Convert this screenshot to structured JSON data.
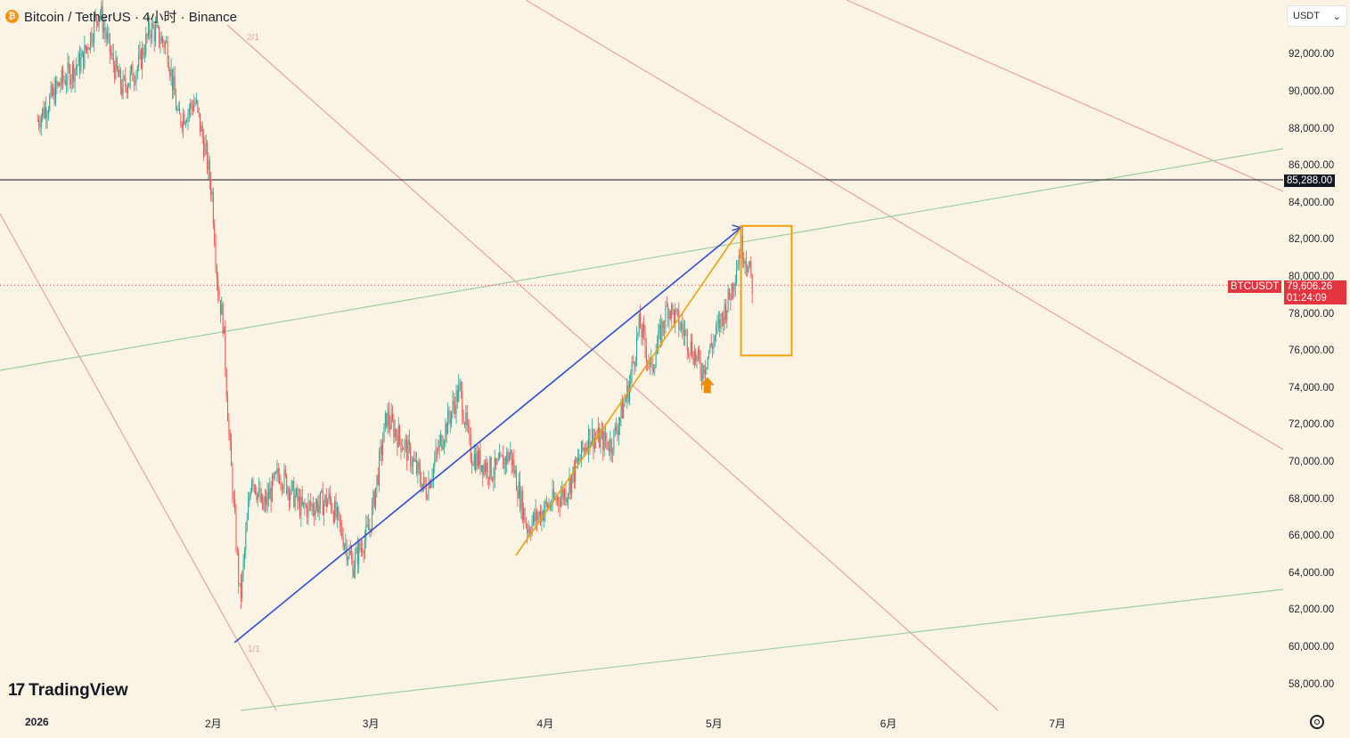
{
  "header": {
    "symbol_title": "Bitcoin / TetherUS · 4小时 · Binance",
    "coin_icon": "bitcoin-icon",
    "currency": "USDT"
  },
  "brand": {
    "name": "TradingView"
  },
  "colors": {
    "background": "#fbf3e4",
    "candle_up": "#26a69a",
    "candle_down": "#ef5350",
    "trend_blue": "#2b4fd6",
    "trend_orange": "#f0a10a",
    "channel_red": "#e38a8a",
    "channel_green": "#9ccf9c",
    "last_price_tag": "#e2353f"
  },
  "price_axis": {
    "ticks": [
      "92,000.00",
      "90,000.00",
      "88,000.00",
      "86,000.00",
      "84,000.00",
      "82,000.00",
      "80,000.00",
      "78,000.00",
      "76,000.00",
      "74,000.00",
      "72,000.00",
      "70,000.00",
      "68,000.00",
      "66,000.00",
      "64,000.00",
      "62,000.00",
      "60,000.00",
      "58,000.00"
    ],
    "horizontal_line_label": "85,288.00",
    "symbol_tag": "BTCUSDT",
    "last_price": "79,606.26",
    "countdown": "01:24:09"
  },
  "time_axis": {
    "ticks": [
      "2026",
      "2月",
      "3月",
      "4月",
      "5月",
      "6月",
      "7月"
    ]
  },
  "annotations": {
    "fib_top": "2/1",
    "fib_bottom": "1/1"
  },
  "chart_data": {
    "type": "candlestick",
    "title": "Bitcoin / TetherUS · 4小时 · Binance",
    "ylim": [
      57000,
      94000
    ],
    "x_range": [
      "2026-01-01",
      "2026-07-31"
    ],
    "horizontal_line": 85288,
    "last_price": 79606.26,
    "close_path": [
      {
        "date": "2026-01-01",
        "close": 88500
      },
      {
        "date": "2026-01-05",
        "close": 90500
      },
      {
        "date": "2026-01-09",
        "close": 91800
      },
      {
        "date": "2026-01-12",
        "close": 94500
      },
      {
        "date": "2026-01-14",
        "close": 92000
      },
      {
        "date": "2026-01-16",
        "close": 90200
      },
      {
        "date": "2026-01-19",
        "close": 91500
      },
      {
        "date": "2026-01-21",
        "close": 93500
      },
      {
        "date": "2026-01-24",
        "close": 92500
      },
      {
        "date": "2026-01-26",
        "close": 88500
      },
      {
        "date": "2026-01-29",
        "close": 89500
      },
      {
        "date": "2026-01-31",
        "close": 86500
      },
      {
        "date": "2026-02-01",
        "close": 84500
      },
      {
        "date": "2026-02-02",
        "close": 79500
      },
      {
        "date": "2026-02-03",
        "close": 77500
      },
      {
        "date": "2026-02-04",
        "close": 71500
      },
      {
        "date": "2026-02-06",
        "close": 62500
      },
      {
        "date": "2026-02-08",
        "close": 69500
      },
      {
        "date": "2026-02-10",
        "close": 67500
      },
      {
        "date": "2026-02-13",
        "close": 69500
      },
      {
        "date": "2026-02-17",
        "close": 67500
      },
      {
        "date": "2026-02-22",
        "close": 68000
      },
      {
        "date": "2026-02-26",
        "close": 64500
      },
      {
        "date": "2026-03-01",
        "close": 66500
      },
      {
        "date": "2026-03-04",
        "close": 72500
      },
      {
        "date": "2026-03-08",
        "close": 70500
      },
      {
        "date": "2026-03-11",
        "close": 68500
      },
      {
        "date": "2026-03-14",
        "close": 71500
      },
      {
        "date": "2026-03-17",
        "close": 74000
      },
      {
        "date": "2026-03-19",
        "close": 70500
      },
      {
        "date": "2026-03-23",
        "close": 69500
      },
      {
        "date": "2026-03-26",
        "close": 70500
      },
      {
        "date": "2026-03-29",
        "close": 66500
      },
      {
        "date": "2026-04-01",
        "close": 67500
      },
      {
        "date": "2026-04-05",
        "close": 68500
      },
      {
        "date": "2026-04-09",
        "close": 71500
      },
      {
        "date": "2026-04-13",
        "close": 71000
      },
      {
        "date": "2026-04-16",
        "close": 74000
      },
      {
        "date": "2026-04-18",
        "close": 77500
      },
      {
        "date": "2026-04-20",
        "close": 75000
      },
      {
        "date": "2026-04-23",
        "close": 78500
      },
      {
        "date": "2026-04-26",
        "close": 77000
      },
      {
        "date": "2026-04-29",
        "close": 75000
      },
      {
        "date": "2026-05-01",
        "close": 76500
      },
      {
        "date": "2026-05-04",
        "close": 79000
      },
      {
        "date": "2026-05-06",
        "close": 81800
      },
      {
        "date": "2026-05-07",
        "close": 81000
      },
      {
        "date": "2026-05-08",
        "close": 79600
      }
    ],
    "trend_lines": [
      {
        "name": "blue",
        "from": {
          "date": "2026-02-05",
          "price": 60300
        },
        "to": {
          "date": "2026-05-06",
          "price": 82700
        }
      },
      {
        "name": "orange",
        "from": {
          "date": "2026-03-27",
          "price": 65000
        },
        "to": {
          "date": "2026-05-06",
          "price": 82700
        }
      }
    ],
    "box": {
      "from": "2026-05-06",
      "to": "2026-05-15",
      "price_top": 82800,
      "price_bottom": 75800
    },
    "arrow": {
      "date": "2026-04-30",
      "price": 74200
    }
  }
}
